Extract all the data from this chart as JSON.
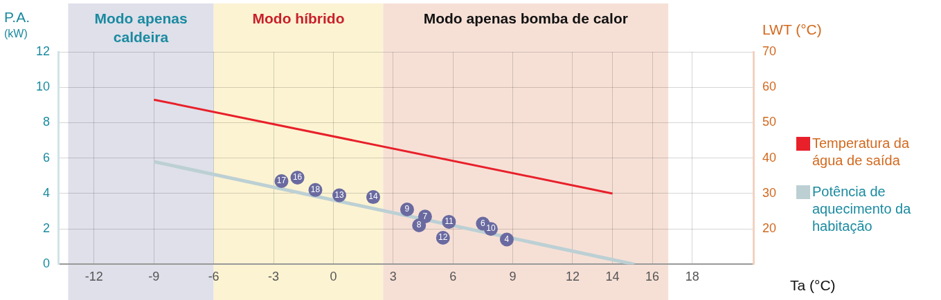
{
  "chart_data": {
    "type": "line",
    "xlabel": "Ta (°C)",
    "ylabel": "P.A.\n(kW)",
    "y2label": "LWT (°C)",
    "xlim": [
      -13.8,
      21.1
    ],
    "xticks": [
      -12,
      -9,
      -6,
      -3,
      0,
      3,
      6,
      9,
      12,
      14,
      16,
      18
    ],
    "ylim": [
      0,
      12
    ],
    "yticks": [
      0,
      2,
      4,
      6,
      8,
      10,
      12
    ],
    "y2lim": [
      10,
      70
    ],
    "y2ticks": [
      20,
      30,
      40,
      50,
      60,
      70
    ],
    "grid": true,
    "legend": "right",
    "bands": [
      {
        "axis": "x",
        "from": -13.3,
        "to": -6,
        "label": "Modo apenas caldeira",
        "color": "#dfe0ea"
      },
      {
        "axis": "x",
        "from": -6,
        "to": 2.5,
        "label": "Modo híbrido",
        "color": "#fcf3d2"
      },
      {
        "axis": "x",
        "from": 2.5,
        "to": 16.8,
        "label": "Modo apenas bomba de calor",
        "color": "#f6e0d6"
      }
    ],
    "series": [
      {
        "name": "Temperatura da água de saída",
        "axis": "y2",
        "color": "#e8202a",
        "x": [
          -9,
          14
        ],
        "values": [
          56.5,
          30
        ]
      },
      {
        "name": "Potência de aquecimento da habitação",
        "color": "#bcd0d4",
        "x": [
          -9,
          15.1
        ],
        "values": [
          5.8,
          0
        ]
      },
      {
        "type": "scatter",
        "color": "#6a6aa0",
        "x": [
          -2.6,
          -1.8,
          -0.9,
          0.3,
          2.0,
          3.7,
          4.6,
          4.3,
          5.8,
          5.5,
          7.5,
          7.9,
          8.7
        ],
        "values": [
          4.7,
          4.9,
          4.2,
          3.9,
          3.8,
          3.1,
          2.7,
          2.2,
          2.4,
          1.5,
          2.3,
          2.0,
          1.4
        ]
      }
    ],
    "annotations": [
      {
        "text": "17",
        "x": -2.6,
        "y": 4.7
      },
      {
        "text": "16",
        "x": -1.8,
        "y": 4.9
      },
      {
        "text": "18",
        "x": -0.9,
        "y": 4.2
      },
      {
        "text": "13",
        "x": 0.3,
        "y": 3.9
      },
      {
        "text": "14",
        "x": 2.0,
        "y": 3.8
      },
      {
        "text": "9",
        "x": 3.7,
        "y": 3.1
      },
      {
        "text": "7",
        "x": 4.6,
        "y": 2.7
      },
      {
        "text": "8",
        "x": 4.3,
        "y": 2.2
      },
      {
        "text": "11",
        "x": 5.8,
        "y": 2.4
      },
      {
        "text": "12",
        "x": 5.5,
        "y": 1.5
      },
      {
        "text": "6",
        "x": 7.5,
        "y": 2.3
      },
      {
        "text": "10",
        "x": 7.9,
        "y": 2.0
      },
      {
        "text": "4",
        "x": 8.7,
        "y": 1.4
      }
    ]
  }
}
